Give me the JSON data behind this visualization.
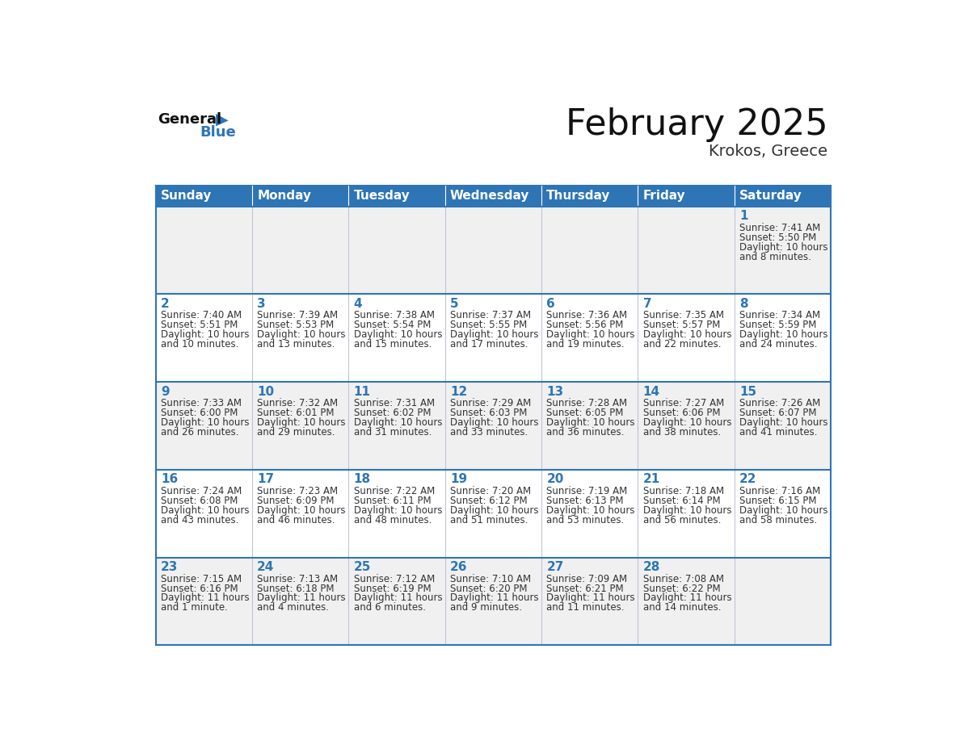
{
  "title": "February 2025",
  "subtitle": "Krokos, Greece",
  "header_bg": "#2E75B6",
  "header_text_color": "#FFFFFF",
  "cell_bg_light": "#F0F0F0",
  "cell_bg_white": "#FFFFFF",
  "border_color": "#2E75B6",
  "text_color": "#333333",
  "day_num_color": "#2E75B6",
  "days_of_week": [
    "Sunday",
    "Monday",
    "Tuesday",
    "Wednesday",
    "Thursday",
    "Friday",
    "Saturday"
  ],
  "title_fontsize": 32,
  "subtitle_fontsize": 14,
  "header_fontsize": 11,
  "cell_fontsize": 8.5,
  "day_num_fontsize": 11,
  "logo_general_fontsize": 13,
  "logo_blue_fontsize": 13,
  "calendar_data": [
    [
      {
        "day": null,
        "sunrise": null,
        "sunset": null,
        "daylight": null
      },
      {
        "day": null,
        "sunrise": null,
        "sunset": null,
        "daylight": null
      },
      {
        "day": null,
        "sunrise": null,
        "sunset": null,
        "daylight": null
      },
      {
        "day": null,
        "sunrise": null,
        "sunset": null,
        "daylight": null
      },
      {
        "day": null,
        "sunrise": null,
        "sunset": null,
        "daylight": null
      },
      {
        "day": null,
        "sunrise": null,
        "sunset": null,
        "daylight": null
      },
      {
        "day": 1,
        "sunrise": "7:41 AM",
        "sunset": "5:50 PM",
        "daylight": "10 hours\nand 8 minutes."
      }
    ],
    [
      {
        "day": 2,
        "sunrise": "7:40 AM",
        "sunset": "5:51 PM",
        "daylight": "10 hours\nand 10 minutes."
      },
      {
        "day": 3,
        "sunrise": "7:39 AM",
        "sunset": "5:53 PM",
        "daylight": "10 hours\nand 13 minutes."
      },
      {
        "day": 4,
        "sunrise": "7:38 AM",
        "sunset": "5:54 PM",
        "daylight": "10 hours\nand 15 minutes."
      },
      {
        "day": 5,
        "sunrise": "7:37 AM",
        "sunset": "5:55 PM",
        "daylight": "10 hours\nand 17 minutes."
      },
      {
        "day": 6,
        "sunrise": "7:36 AM",
        "sunset": "5:56 PM",
        "daylight": "10 hours\nand 19 minutes."
      },
      {
        "day": 7,
        "sunrise": "7:35 AM",
        "sunset": "5:57 PM",
        "daylight": "10 hours\nand 22 minutes."
      },
      {
        "day": 8,
        "sunrise": "7:34 AM",
        "sunset": "5:59 PM",
        "daylight": "10 hours\nand 24 minutes."
      }
    ],
    [
      {
        "day": 9,
        "sunrise": "7:33 AM",
        "sunset": "6:00 PM",
        "daylight": "10 hours\nand 26 minutes."
      },
      {
        "day": 10,
        "sunrise": "7:32 AM",
        "sunset": "6:01 PM",
        "daylight": "10 hours\nand 29 minutes."
      },
      {
        "day": 11,
        "sunrise": "7:31 AM",
        "sunset": "6:02 PM",
        "daylight": "10 hours\nand 31 minutes."
      },
      {
        "day": 12,
        "sunrise": "7:29 AM",
        "sunset": "6:03 PM",
        "daylight": "10 hours\nand 33 minutes."
      },
      {
        "day": 13,
        "sunrise": "7:28 AM",
        "sunset": "6:05 PM",
        "daylight": "10 hours\nand 36 minutes."
      },
      {
        "day": 14,
        "sunrise": "7:27 AM",
        "sunset": "6:06 PM",
        "daylight": "10 hours\nand 38 minutes."
      },
      {
        "day": 15,
        "sunrise": "7:26 AM",
        "sunset": "6:07 PM",
        "daylight": "10 hours\nand 41 minutes."
      }
    ],
    [
      {
        "day": 16,
        "sunrise": "7:24 AM",
        "sunset": "6:08 PM",
        "daylight": "10 hours\nand 43 minutes."
      },
      {
        "day": 17,
        "sunrise": "7:23 AM",
        "sunset": "6:09 PM",
        "daylight": "10 hours\nand 46 minutes."
      },
      {
        "day": 18,
        "sunrise": "7:22 AM",
        "sunset": "6:11 PM",
        "daylight": "10 hours\nand 48 minutes."
      },
      {
        "day": 19,
        "sunrise": "7:20 AM",
        "sunset": "6:12 PM",
        "daylight": "10 hours\nand 51 minutes."
      },
      {
        "day": 20,
        "sunrise": "7:19 AM",
        "sunset": "6:13 PM",
        "daylight": "10 hours\nand 53 minutes."
      },
      {
        "day": 21,
        "sunrise": "7:18 AM",
        "sunset": "6:14 PM",
        "daylight": "10 hours\nand 56 minutes."
      },
      {
        "day": 22,
        "sunrise": "7:16 AM",
        "sunset": "6:15 PM",
        "daylight": "10 hours\nand 58 minutes."
      }
    ],
    [
      {
        "day": 23,
        "sunrise": "7:15 AM",
        "sunset": "6:16 PM",
        "daylight": "11 hours\nand 1 minute."
      },
      {
        "day": 24,
        "sunrise": "7:13 AM",
        "sunset": "6:18 PM",
        "daylight": "11 hours\nand 4 minutes."
      },
      {
        "day": 25,
        "sunrise": "7:12 AM",
        "sunset": "6:19 PM",
        "daylight": "11 hours\nand 6 minutes."
      },
      {
        "day": 26,
        "sunrise": "7:10 AM",
        "sunset": "6:20 PM",
        "daylight": "11 hours\nand 9 minutes."
      },
      {
        "day": 27,
        "sunrise": "7:09 AM",
        "sunset": "6:21 PM",
        "daylight": "11 hours\nand 11 minutes."
      },
      {
        "day": 28,
        "sunrise": "7:08 AM",
        "sunset": "6:22 PM",
        "daylight": "11 hours\nand 14 minutes."
      },
      {
        "day": null,
        "sunrise": null,
        "sunset": null,
        "daylight": null
      }
    ]
  ]
}
